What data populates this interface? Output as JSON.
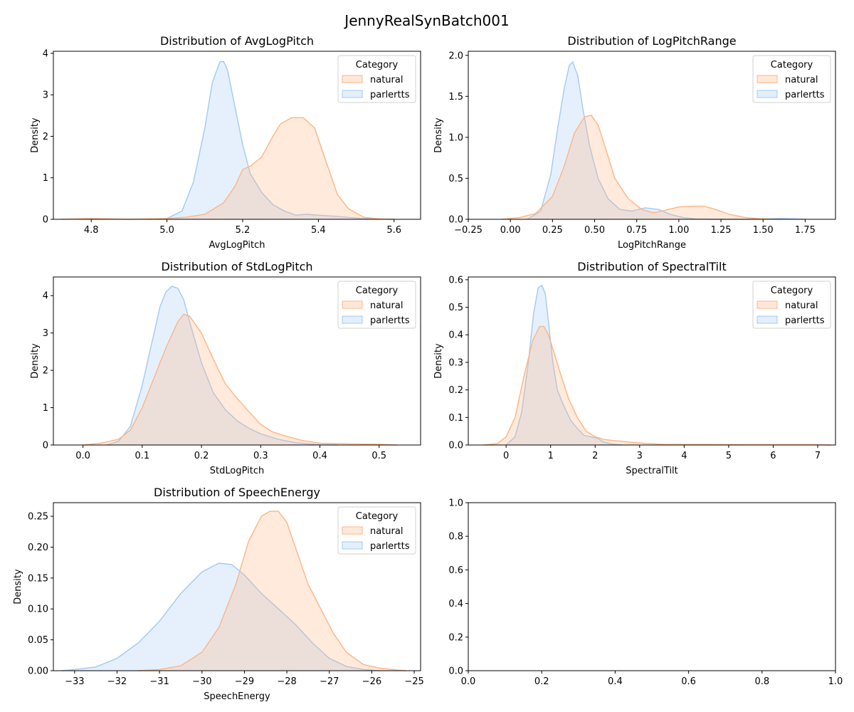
{
  "figure": {
    "title": "JennyRealSynBatch001"
  },
  "colors": {
    "natural_line": "#ffb482",
    "natural_fill": "#ffb482",
    "parlertts_line": "#a1c9f4",
    "parlertts_fill": "#a1c9f4"
  },
  "chart_data": [
    {
      "type": "area",
      "title": "Distribution of AvgLogPitch",
      "xlabel": "AvgLogPitch",
      "ylabel": "Density",
      "xlim": [
        4.7,
        5.67
      ],
      "ylim": [
        0,
        4.05
      ],
      "xticks": [
        4.8,
        5.0,
        5.2,
        5.4,
        5.6
      ],
      "xtick_labels": [
        "4.8",
        "5.0",
        "5.2",
        "5.4",
        "5.6"
      ],
      "yticks": [
        0,
        1,
        2,
        3,
        4
      ],
      "ytick_labels": [
        "0",
        "1",
        "2",
        "3",
        "4"
      ],
      "legend": {
        "title": "Category",
        "entries": [
          "natural",
          "parlertts"
        ],
        "placement": "upper right"
      },
      "series": [
        {
          "name": "natural",
          "x": [
            4.72,
            4.8,
            4.9,
            5.0,
            5.05,
            5.1,
            5.15,
            5.18,
            5.2,
            5.22,
            5.25,
            5.28,
            5.3,
            5.33,
            5.36,
            5.39,
            5.42,
            5.45,
            5.48,
            5.52,
            5.56,
            5.6
          ],
          "y": [
            0,
            0.02,
            0,
            0.02,
            0.05,
            0.12,
            0.4,
            0.8,
            1.2,
            1.28,
            1.5,
            2.0,
            2.3,
            2.45,
            2.45,
            2.2,
            1.4,
            0.6,
            0.25,
            0.05,
            0.01,
            0
          ]
        },
        {
          "name": "parlertts",
          "x": [
            4.95,
            5.0,
            5.04,
            5.07,
            5.1,
            5.12,
            5.14,
            5.15,
            5.16,
            5.18,
            5.2,
            5.22,
            5.25,
            5.28,
            5.31,
            5.34,
            5.37,
            5.4,
            5.45,
            5.5,
            5.55,
            5.6
          ],
          "y": [
            0,
            0.02,
            0.2,
            0.9,
            2.2,
            3.3,
            3.8,
            3.8,
            3.6,
            2.7,
            1.8,
            1.1,
            0.65,
            0.35,
            0.2,
            0.1,
            0.12,
            0.1,
            0.07,
            0.03,
            0.01,
            0
          ]
        }
      ]
    },
    {
      "type": "area",
      "title": "Distribution of LogPitchRange",
      "xlabel": "LogPitchRange",
      "ylabel": "Density",
      "xlim": [
        -0.25,
        1.93
      ],
      "ylim": [
        0,
        2.05
      ],
      "xticks": [
        -0.25,
        0.0,
        0.25,
        0.5,
        0.75,
        1.0,
        1.25,
        1.5,
        1.75
      ],
      "xtick_labels": [
        "−0.25",
        "0.00",
        "0.25",
        "0.50",
        "0.75",
        "1.00",
        "1.25",
        "1.50",
        "1.75"
      ],
      "yticks": [
        0,
        0.5,
        1.0,
        1.5,
        2.0
      ],
      "ytick_labels": [
        "0.0",
        "0.5",
        "1.0",
        "1.5",
        "2.0"
      ],
      "legend": {
        "title": "Category",
        "entries": [
          "natural",
          "parlertts"
        ],
        "placement": "upper right"
      },
      "series": [
        {
          "name": "natural",
          "x": [
            -0.05,
            0.05,
            0.15,
            0.25,
            0.32,
            0.38,
            0.44,
            0.48,
            0.52,
            0.56,
            0.62,
            0.7,
            0.78,
            0.85,
            0.92,
            1.0,
            1.08,
            1.15,
            1.22,
            1.3,
            1.4,
            1.5,
            1.6
          ],
          "y": [
            0,
            0.02,
            0.07,
            0.28,
            0.65,
            1.05,
            1.25,
            1.27,
            1.15,
            0.9,
            0.5,
            0.25,
            0.12,
            0.08,
            0.11,
            0.15,
            0.16,
            0.16,
            0.12,
            0.06,
            0.02,
            0.005,
            0
          ]
        },
        {
          "name": "parlertts",
          "x": [
            0.1,
            0.18,
            0.24,
            0.28,
            0.32,
            0.35,
            0.37,
            0.4,
            0.43,
            0.47,
            0.52,
            0.58,
            0.65,
            0.72,
            0.8,
            0.88,
            0.95,
            1.03,
            1.1,
            1.2,
            1.4,
            1.6,
            1.75
          ],
          "y": [
            0,
            0.1,
            0.55,
            1.1,
            1.6,
            1.88,
            1.92,
            1.75,
            1.35,
            0.9,
            0.5,
            0.25,
            0.12,
            0.1,
            0.14,
            0.12,
            0.06,
            0.02,
            0.005,
            0,
            0,
            0.01,
            0
          ]
        }
      ]
    },
    {
      "type": "area",
      "title": "Distribution of StdLogPitch",
      "xlabel": "StdLogPitch",
      "ylabel": "Density",
      "xlim": [
        -0.05,
        0.57
      ],
      "ylim": [
        0,
        4.5
      ],
      "xticks": [
        0.0,
        0.1,
        0.2,
        0.3,
        0.4,
        0.5
      ],
      "xtick_labels": [
        "0.0",
        "0.1",
        "0.2",
        "0.3",
        "0.4",
        "0.5"
      ],
      "yticks": [
        0,
        1,
        2,
        3,
        4
      ],
      "ytick_labels": [
        "0",
        "1",
        "2",
        "3",
        "4"
      ],
      "legend": {
        "title": "Category",
        "entries": [
          "natural",
          "parlertts"
        ],
        "placement": "upper right"
      },
      "series": [
        {
          "name": "natural",
          "x": [
            0.0,
            0.03,
            0.06,
            0.08,
            0.1,
            0.12,
            0.14,
            0.16,
            0.17,
            0.18,
            0.2,
            0.22,
            0.24,
            0.26,
            0.28,
            0.3,
            0.32,
            0.34,
            0.37,
            0.4,
            0.45,
            0.5,
            0.53
          ],
          "y": [
            0,
            0.05,
            0.15,
            0.4,
            1.0,
            1.8,
            2.6,
            3.3,
            3.5,
            3.45,
            3.0,
            2.3,
            1.65,
            1.25,
            0.9,
            0.55,
            0.35,
            0.25,
            0.12,
            0.05,
            0.03,
            0.02,
            0
          ]
        },
        {
          "name": "parlertts",
          "x": [
            0.04,
            0.06,
            0.08,
            0.1,
            0.12,
            0.13,
            0.14,
            0.15,
            0.16,
            0.17,
            0.18,
            0.2,
            0.22,
            0.24,
            0.26,
            0.28,
            0.3,
            0.33,
            0.36,
            0.4,
            0.43
          ],
          "y": [
            0,
            0.1,
            0.5,
            1.6,
            3.0,
            3.7,
            4.1,
            4.25,
            4.2,
            3.9,
            3.3,
            2.2,
            1.4,
            0.95,
            0.65,
            0.45,
            0.3,
            0.15,
            0.06,
            0.01,
            0
          ]
        }
      ]
    },
    {
      "type": "area",
      "title": "Distribution of SpectralTilt",
      "xlabel": "SpectralTilt",
      "ylabel": "Density",
      "xlim": [
        -0.85,
        7.4
      ],
      "ylim": [
        0,
        0.61
      ],
      "xticks": [
        0,
        1,
        2,
        3,
        4,
        5,
        6,
        7
      ],
      "xtick_labels": [
        "0",
        "1",
        "2",
        "3",
        "4",
        "5",
        "6",
        "7"
      ],
      "yticks": [
        0,
        0.1,
        0.2,
        0.3,
        0.4,
        0.5,
        0.6
      ],
      "ytick_labels": [
        "0.0",
        "0.1",
        "0.2",
        "0.3",
        "0.4",
        "0.5",
        "0.6"
      ],
      "legend": {
        "title": "Category",
        "entries": [
          "natural",
          "parlertts"
        ],
        "placement": "upper right"
      },
      "series": [
        {
          "name": "natural",
          "x": [
            -0.5,
            -0.2,
            0.0,
            0.2,
            0.4,
            0.6,
            0.75,
            0.85,
            0.95,
            1.05,
            1.2,
            1.4,
            1.6,
            1.8,
            2.0,
            2.2,
            2.5,
            2.8,
            3.2,
            3.6,
            4.5,
            5.5,
            6.5,
            7.0,
            7.3
          ],
          "y": [
            0,
            0.005,
            0.03,
            0.1,
            0.25,
            0.38,
            0.43,
            0.43,
            0.4,
            0.35,
            0.27,
            0.17,
            0.1,
            0.05,
            0.03,
            0.02,
            0.015,
            0.01,
            0.005,
            0.002,
            0.002,
            0.001,
            0.001,
            0.001,
            0
          ]
        },
        {
          "name": "parlertts",
          "x": [
            0.0,
            0.2,
            0.35,
            0.5,
            0.62,
            0.72,
            0.8,
            0.88,
            0.95,
            1.05,
            1.15,
            1.3,
            1.45,
            1.6,
            1.75,
            1.9,
            2.05,
            2.2,
            2.4,
            2.6
          ],
          "y": [
            0,
            0.03,
            0.12,
            0.3,
            0.48,
            0.57,
            0.58,
            0.55,
            0.45,
            0.3,
            0.2,
            0.14,
            0.09,
            0.06,
            0.035,
            0.03,
            0.025,
            0.01,
            0.003,
            0
          ]
        }
      ]
    },
    {
      "type": "area",
      "title": "Distribution of SpeechEnergy",
      "xlabel": "SpeechEnergy",
      "ylabel": "Density",
      "xlim": [
        -33.5,
        -24.85
      ],
      "ylim": [
        0,
        0.272
      ],
      "xticks": [
        -33,
        -32,
        -31,
        -30,
        -29,
        -28,
        -27,
        -26,
        -25
      ],
      "xtick_labels": [
        "−33",
        "−32",
        "−31",
        "−30",
        "−29",
        "−28",
        "−27",
        "−26",
        "−25"
      ],
      "yticks": [
        0,
        0.05,
        0.1,
        0.15,
        0.2,
        0.25
      ],
      "ytick_labels": [
        "0.00",
        "0.05",
        "0.10",
        "0.15",
        "0.20",
        "0.25"
      ],
      "legend": {
        "title": "Category",
        "entries": [
          "natural",
          "parlertts"
        ],
        "placement": "upper right"
      },
      "series": [
        {
          "name": "natural",
          "x": [
            -31.5,
            -31.0,
            -30.5,
            -30.0,
            -29.6,
            -29.2,
            -28.9,
            -28.6,
            -28.4,
            -28.2,
            -28.0,
            -27.8,
            -27.5,
            -27.2,
            -26.9,
            -26.6,
            -26.2,
            -25.8,
            -25.4,
            -25.2
          ],
          "y": [
            0,
            0.002,
            0.008,
            0.03,
            0.07,
            0.14,
            0.21,
            0.25,
            0.258,
            0.258,
            0.24,
            0.2,
            0.14,
            0.1,
            0.06,
            0.03,
            0.01,
            0.004,
            0.001,
            0
          ]
        },
        {
          "name": "parlertts",
          "x": [
            -33.3,
            -33.0,
            -32.5,
            -32.0,
            -31.5,
            -31.0,
            -30.5,
            -30.0,
            -29.6,
            -29.3,
            -29.0,
            -28.6,
            -28.2,
            -27.8,
            -27.4,
            -27.0,
            -26.6,
            -26.2,
            -25.8
          ],
          "y": [
            0,
            0.002,
            0.006,
            0.02,
            0.045,
            0.08,
            0.125,
            0.16,
            0.174,
            0.172,
            0.155,
            0.125,
            0.1,
            0.075,
            0.045,
            0.02,
            0.007,
            0.002,
            0
          ]
        }
      ]
    },
    {
      "type": "empty",
      "title": "",
      "xlabel": "",
      "ylabel": "",
      "xlim": [
        0,
        1
      ],
      "ylim": [
        0,
        1
      ],
      "xticks": [
        0,
        0.2,
        0.4,
        0.6,
        0.8,
        1.0
      ],
      "xtick_labels": [
        "0.0",
        "0.2",
        "0.4",
        "0.6",
        "0.8",
        "1.0"
      ],
      "yticks": [
        0,
        0.2,
        0.4,
        0.6,
        0.8,
        1.0
      ],
      "ytick_labels": [
        "0.0",
        "0.2",
        "0.4",
        "0.6",
        "0.8",
        "1.0"
      ],
      "series": []
    }
  ]
}
